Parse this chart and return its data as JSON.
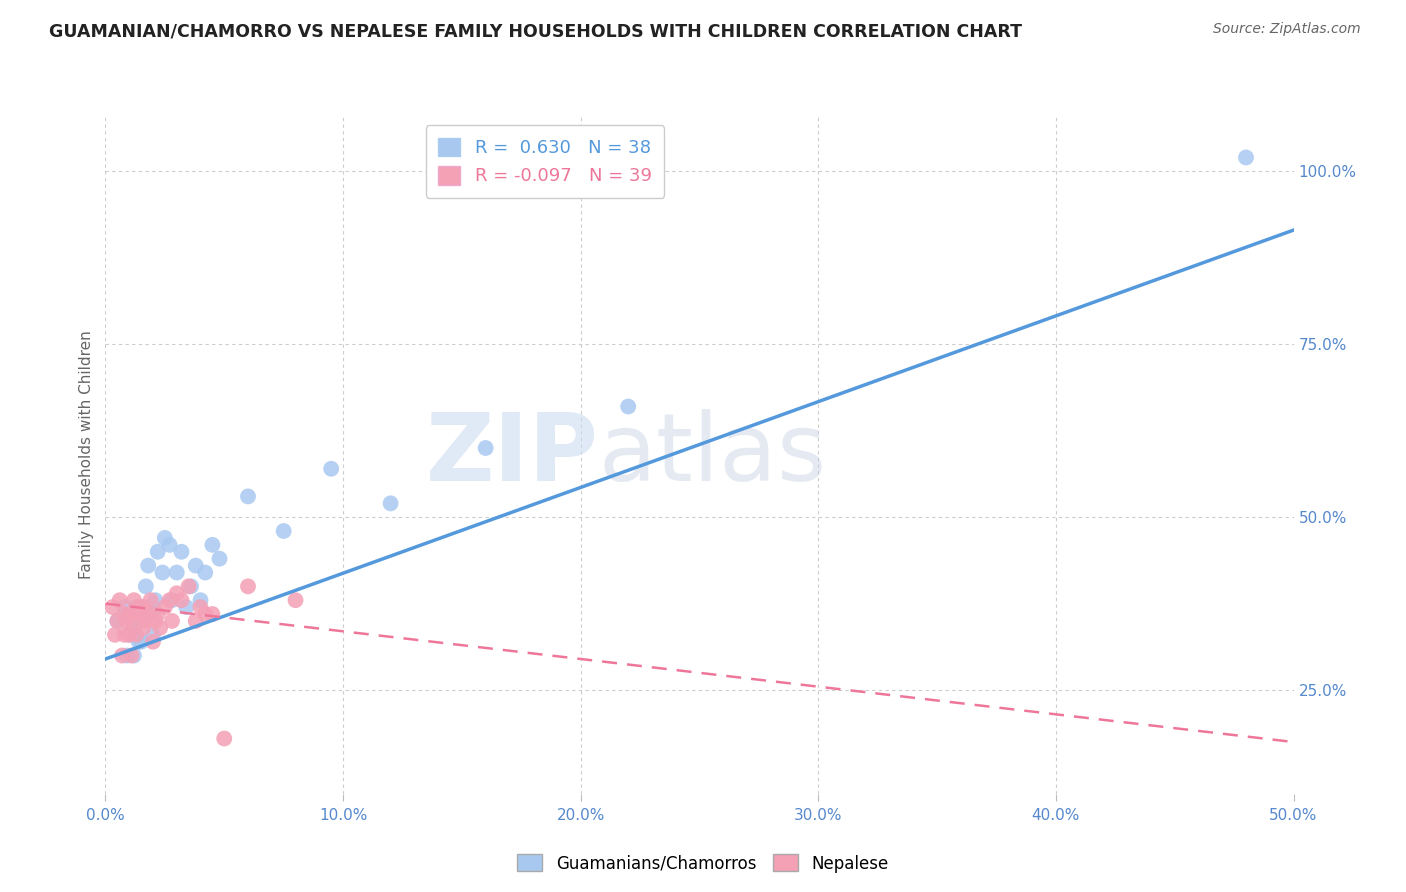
{
  "title": "GUAMANIAN/CHAMORRO VS NEPALESE FAMILY HOUSEHOLDS WITH CHILDREN CORRELATION CHART",
  "source": "Source: ZipAtlas.com",
  "ylabel": "Family Households with Children",
  "xlim": [
    0.0,
    0.5
  ],
  "ylim": [
    0.1,
    1.08
  ],
  "blue_R": 0.63,
  "blue_N": 38,
  "pink_R": -0.097,
  "pink_N": 39,
  "legend_label_blue": "Guamanians/Chamorros",
  "legend_label_pink": "Nepalese",
  "watermark_zip": "ZIP",
  "watermark_atlas": "atlas",
  "background_color": "#ffffff",
  "plot_bg_color": "#ffffff",
  "grid_color": "#cccccc",
  "blue_color": "#a8c8f0",
  "pink_color": "#f4a0b5",
  "blue_line_color": "#5599dd",
  "pink_line_color": "#ee7799",
  "blue_scatter_x": [
    0.005,
    0.008,
    0.009,
    0.01,
    0.01,
    0.012,
    0.012,
    0.013,
    0.014,
    0.015,
    0.015,
    0.016,
    0.017,
    0.018,
    0.02,
    0.02,
    0.021,
    0.022,
    0.024,
    0.025,
    0.027,
    0.028,
    0.03,
    0.032,
    0.034,
    0.036,
    0.038,
    0.04,
    0.042,
    0.045,
    0.048,
    0.06,
    0.075,
    0.095,
    0.12,
    0.16,
    0.22,
    0.48
  ],
  "blue_scatter_y": [
    0.35,
    0.37,
    0.3,
    0.33,
    0.36,
    0.3,
    0.34,
    0.37,
    0.32,
    0.32,
    0.35,
    0.37,
    0.4,
    0.43,
    0.33,
    0.36,
    0.38,
    0.45,
    0.42,
    0.47,
    0.46,
    0.38,
    0.42,
    0.45,
    0.37,
    0.4,
    0.43,
    0.38,
    0.42,
    0.46,
    0.44,
    0.53,
    0.48,
    0.57,
    0.52,
    0.6,
    0.66,
    1.02
  ],
  "pink_scatter_x": [
    0.003,
    0.004,
    0.005,
    0.006,
    0.007,
    0.008,
    0.008,
    0.009,
    0.01,
    0.01,
    0.011,
    0.011,
    0.012,
    0.013,
    0.013,
    0.014,
    0.015,
    0.016,
    0.016,
    0.017,
    0.018,
    0.019,
    0.02,
    0.021,
    0.022,
    0.023,
    0.025,
    0.027,
    0.028,
    0.03,
    0.032,
    0.035,
    0.038,
    0.04,
    0.042,
    0.045,
    0.05,
    0.06,
    0.08
  ],
  "pink_scatter_y": [
    0.37,
    0.33,
    0.35,
    0.38,
    0.3,
    0.33,
    0.36,
    0.35,
    0.33,
    0.36,
    0.3,
    0.35,
    0.38,
    0.33,
    0.36,
    0.37,
    0.36,
    0.34,
    0.37,
    0.35,
    0.36,
    0.38,
    0.32,
    0.35,
    0.36,
    0.34,
    0.37,
    0.38,
    0.35,
    0.39,
    0.38,
    0.4,
    0.35,
    0.37,
    0.36,
    0.36,
    0.18,
    0.4,
    0.38
  ],
  "blue_line_x": [
    0.0,
    0.5
  ],
  "blue_line_y": [
    0.295,
    0.915
  ],
  "pink_line_x": [
    0.0,
    0.5
  ],
  "pink_line_y": [
    0.375,
    0.175
  ],
  "yticks": [
    0.25,
    0.5,
    0.75,
    1.0
  ],
  "xticks": [
    0.0,
    0.1,
    0.2,
    0.3,
    0.4,
    0.5
  ]
}
